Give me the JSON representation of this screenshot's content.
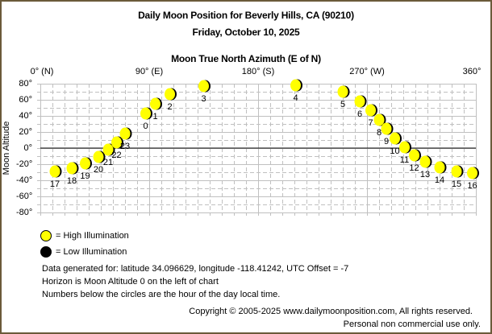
{
  "header": {
    "title": "Daily Moon Position for Beverly Hills, CA (90210)",
    "date": "Friday, October 10, 2025",
    "axis_title": "Moon True North Azimuth (E of N)"
  },
  "x_ticks": [
    "0° (N)",
    "90° (E)",
    "180° (S)",
    "270° (W)",
    "360°"
  ],
  "y_ticks": [
    "80°",
    "60°",
    "40°",
    "20°",
    "0°",
    "-20°",
    "-40°",
    "-60°",
    "-80°"
  ],
  "y_label": "Moon Altitude",
  "legend": {
    "high": "= High Illumination",
    "low": "= Low Illumination",
    "high_color": "#ffff00",
    "low_color": "#000000"
  },
  "notes": {
    "line1": "Data generated for: latitude 34.096629, longitude -118.41242, UTC Offset = -7",
    "line2": "Horizon is Moon Altitude 0 on the left of chart",
    "line3": "Numbers below the circles are the hour of the day local time."
  },
  "footer": {
    "copyright": "Copyright © 2005-2025 www.dailymoonposition.com, All rights reserved.",
    "usage": "Personal non commercial use only."
  },
  "colors": {
    "frame": "#6b5a3a",
    "moon_lit": "#ffff00",
    "moon_dark": "#000000",
    "grid": "#c0c0c0",
    "horizon": "#000000"
  },
  "chart_data": {
    "type": "scatter",
    "title": "Daily Moon Position for Beverly Hills, CA (90210)",
    "subtitle": "Friday, October 10, 2025",
    "xlabel": "Moon True North Azimuth (E of N)",
    "ylabel": "Moon Altitude",
    "xlim": [
      0,
      360
    ],
    "ylim": [
      -80,
      80
    ],
    "x_tick_labels": [
      "0° (N)",
      "90° (E)",
      "180° (S)",
      "270° (W)",
      "360°"
    ],
    "y_tick_labels": [
      "80°",
      "60°",
      "40°",
      "20°",
      "0°",
      "-20°",
      "-40°",
      "-60°",
      "-80°"
    ],
    "grid": true,
    "legend": [
      "High Illumination",
      "Low Illumination"
    ],
    "series": [
      {
        "name": "Moon position by hour (High Illumination)",
        "points": [
          {
            "hour": 0,
            "azimuth": 87,
            "altitude": 43
          },
          {
            "hour": 1,
            "azimuth": 95,
            "altitude": 55
          },
          {
            "hour": 2,
            "azimuth": 107,
            "altitude": 67
          },
          {
            "hour": 3,
            "azimuth": 135,
            "altitude": 77
          },
          {
            "hour": 4,
            "azimuth": 211,
            "altitude": 78
          },
          {
            "hour": 5,
            "azimuth": 250,
            "altitude": 70
          },
          {
            "hour": 6,
            "azimuth": 264,
            "altitude": 58
          },
          {
            "hour": 7,
            "azimuth": 273,
            "altitude": 47
          },
          {
            "hour": 8,
            "azimuth": 280,
            "altitude": 35
          },
          {
            "hour": 9,
            "azimuth": 286,
            "altitude": 24
          },
          {
            "hour": 10,
            "azimuth": 293,
            "altitude": 12
          },
          {
            "hour": 11,
            "azimuth": 301,
            "altitude": 1
          },
          {
            "hour": 12,
            "azimuth": 309,
            "altitude": -9
          },
          {
            "hour": 13,
            "azimuth": 318,
            "altitude": -17
          },
          {
            "hour": 14,
            "azimuth": 330,
            "altitude": -24
          },
          {
            "hour": 15,
            "azimuth": 344,
            "altitude": -29
          },
          {
            "hour": 16,
            "azimuth": 357,
            "altitude": -31
          },
          {
            "hour": 17,
            "azimuth": 12,
            "altitude": -29
          },
          {
            "hour": 18,
            "azimuth": 26,
            "altitude": -25
          },
          {
            "hour": 19,
            "azimuth": 37,
            "altitude": -19
          },
          {
            "hour": 20,
            "azimuth": 48,
            "altitude": -11
          },
          {
            "hour": 21,
            "azimuth": 56,
            "altitude": -2
          },
          {
            "hour": 22,
            "azimuth": 63,
            "altitude": 7
          },
          {
            "hour": 23,
            "azimuth": 70,
            "altitude": 18
          }
        ]
      }
    ]
  }
}
